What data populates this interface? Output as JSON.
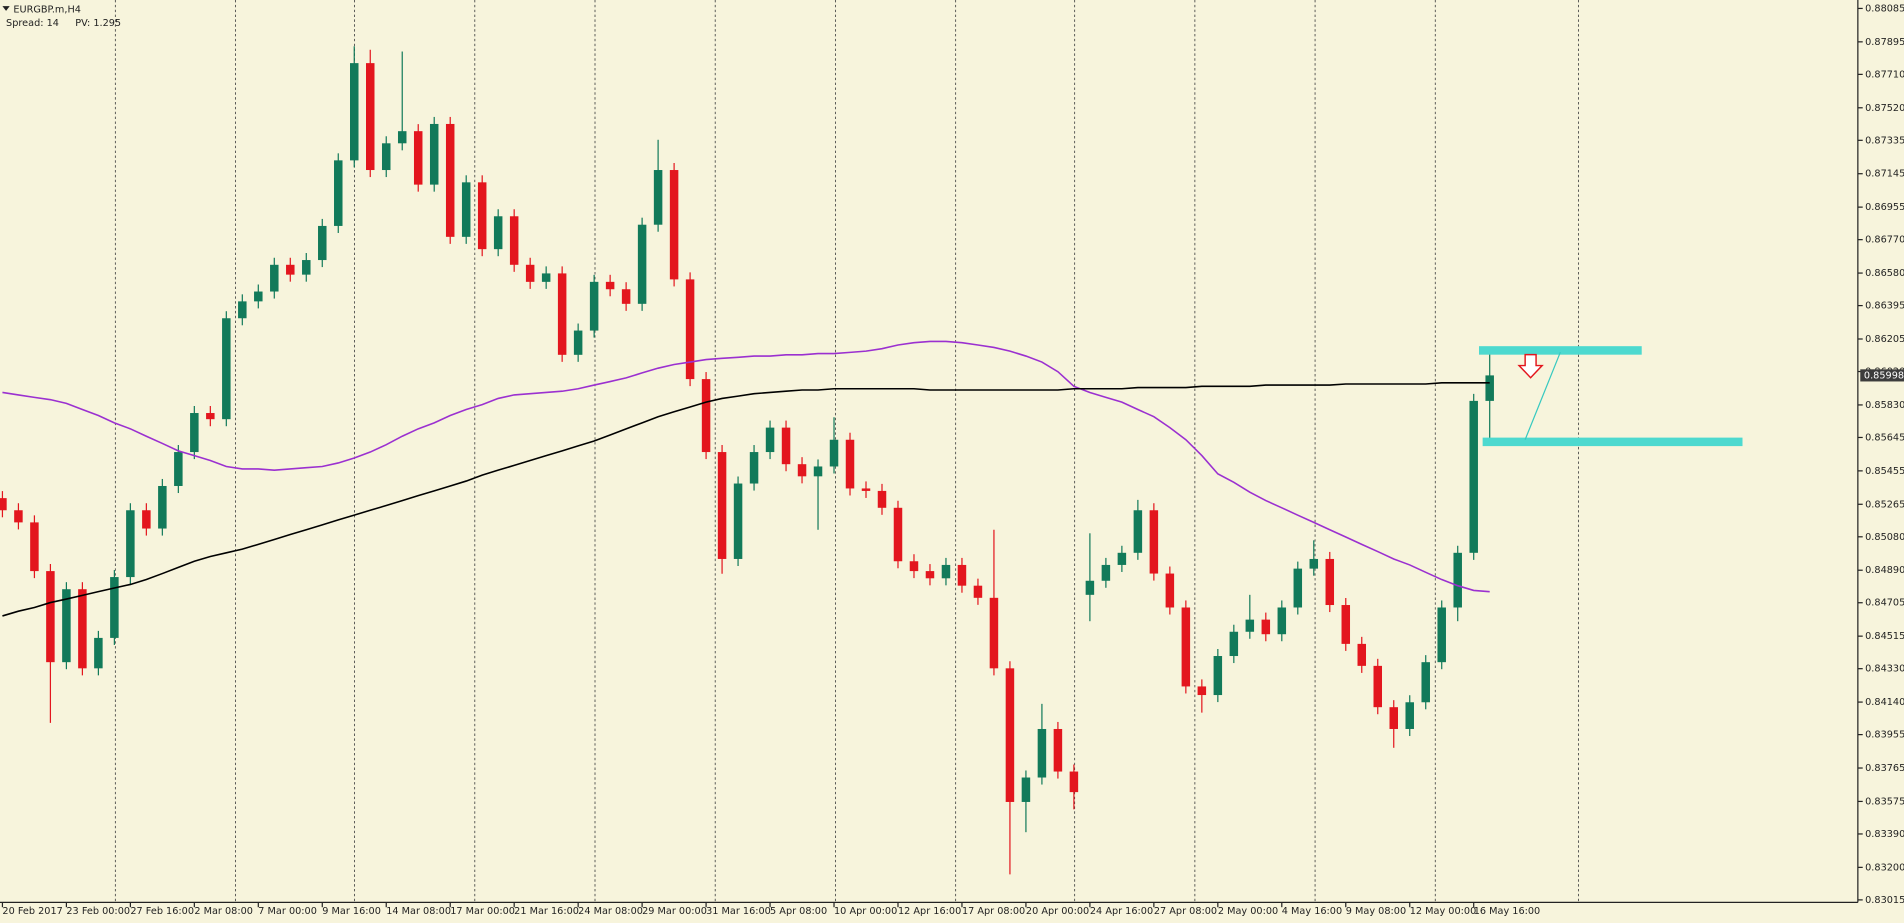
{
  "chart_data": {
    "type": "candlestick",
    "title": "EURGBP.m,H4",
    "spread": "Spread: 14",
    "pv": "PV: 1.295",
    "up_color": "#127a5a",
    "down_color": "#e3161e",
    "background": "#f7f4dc",
    "grid": false,
    "ylim": [
      0.83001,
      0.88133
    ],
    "yticks": [
      {
        "value": 0.88085,
        "label": "0.88085"
      },
      {
        "value": 0.87895,
        "label": "0.87895"
      },
      {
        "value": 0.8771,
        "label": "0.87710"
      },
      {
        "value": 0.8752,
        "label": "0.87520"
      },
      {
        "value": 0.87335,
        "label": "0.87335"
      },
      {
        "value": 0.87145,
        "label": "0.87145"
      },
      {
        "value": 0.86955,
        "label": "0.86955"
      },
      {
        "value": 0.8677,
        "label": "0.86770"
      },
      {
        "value": 0.8658,
        "label": "0.86580"
      },
      {
        "value": 0.86395,
        "label": "0.86395"
      },
      {
        "value": 0.86205,
        "label": "0.86205"
      },
      {
        "value": 0.8602,
        "label": "0.86020"
      },
      {
        "value": 0.8583,
        "label": "0.85830"
      },
      {
        "value": 0.85645,
        "label": "0.85645"
      },
      {
        "value": 0.85455,
        "label": "0.85455"
      },
      {
        "value": 0.85265,
        "label": "0.85265"
      },
      {
        "value": 0.8508,
        "label": "0.85080"
      },
      {
        "value": 0.8489,
        "label": "0.84890"
      },
      {
        "value": 0.84705,
        "label": "0.84705"
      },
      {
        "value": 0.84515,
        "label": "0.84515"
      },
      {
        "value": 0.8433,
        "label": "0.84330"
      },
      {
        "value": 0.8414,
        "label": "0.84140"
      },
      {
        "value": 0.83955,
        "label": "0.83955"
      },
      {
        "value": 0.83765,
        "label": "0.83765"
      },
      {
        "value": 0.83575,
        "label": "0.83575"
      },
      {
        "value": 0.8339,
        "label": "0.83390"
      },
      {
        "value": 0.832,
        "label": "0.83200"
      },
      {
        "value": 0.83015,
        "label": "0.83015"
      }
    ],
    "categories": [
      "20 Feb 2017",
      null,
      null,
      null,
      "23 Feb 00:00",
      null,
      null,
      null,
      "27 Feb 16:00",
      null,
      null,
      null,
      "2 Mar 08:00",
      null,
      null,
      null,
      "7 Mar 00:00",
      null,
      null,
      null,
      "9 Mar 16:00",
      null,
      null,
      null,
      "14 Mar 08:00",
      null,
      null,
      null,
      "17 Mar 00:00",
      null,
      null,
      null,
      "21 Mar 16:00",
      null,
      null,
      null,
      "24 Mar 08:00",
      null,
      null,
      null,
      "29 Mar 00:00",
      null,
      null,
      null,
      "31 Mar 16:00",
      null,
      null,
      null,
      "5 Apr 08:00",
      null,
      null,
      null,
      "10 Apr 00:00",
      null,
      null,
      null,
      "12 Apr 16:00",
      null,
      null,
      null,
      "17 Apr 08:00",
      null,
      null,
      null,
      "20 Apr 00:00",
      null,
      null,
      null,
      "24 Apr 16:00",
      null,
      null,
      null,
      "27 Apr 08:00",
      null,
      null,
      null,
      "2 May 00:00",
      null,
      null,
      null,
      "4 May 16:00",
      null,
      null,
      null,
      "9 May 08:00",
      null,
      null,
      null,
      "12 May 00:00",
      null,
      null,
      null,
      "16 May 16:00",
      null
    ],
    "candles": {
      "open": [
        0.853,
        0.85231,
        0.85162,
        0.84885,
        0.84367,
        0.84782,
        0.84332,
        0.84505,
        0.84851,
        0.85231,
        0.85127,
        0.85369,
        0.85562,
        0.85784,
        0.85749,
        0.86323,
        0.86419,
        0.86475,
        0.86627,
        0.86571,
        0.86654,
        0.86848,
        0.87221,
        0.87774,
        0.87166,
        0.87318,
        0.87387,
        0.87083,
        0.87428,
        0.86786,
        0.87096,
        0.86716,
        0.86903,
        0.86627,
        0.8653,
        0.86578,
        0.86115,
        0.86253,
        0.8653,
        0.86488,
        0.86405,
        0.86855,
        0.87166,
        0.86544,
        0.85977,
        0.85562,
        0.84954,
        0.85383,
        0.85562,
        0.85701,
        0.85493,
        0.85424,
        0.8548,
        0.85632,
        0.85355,
        0.85341,
        0.85245,
        0.84941,
        0.84885,
        0.84844,
        0.8492,
        0.84802,
        0.84733,
        0.84332,
        0.83572,
        0.83711,
        0.83987,
        0.83745,
        0.8475,
        0.8483,
        0.8492,
        0.84989,
        0.85231,
        0.84871,
        0.84678,
        0.84229,
        0.8418,
        0.84402,
        0.8454,
        0.84609,
        0.84526,
        0.84678,
        0.84899,
        0.84954,
        0.84692,
        0.84471,
        0.84346,
        0.84111,
        0.83987,
        0.84139,
        0.84367,
        0.84678,
        0.84989,
        0.85853
      ],
      "high": [
        0.8534,
        0.85271,
        0.85202,
        0.84925,
        0.84822,
        0.84822,
        0.84545,
        0.84891,
        0.85271,
        0.85271,
        0.85409,
        0.85602,
        0.85824,
        0.85824,
        0.86363,
        0.86459,
        0.86515,
        0.86667,
        0.86667,
        0.86694,
        0.86888,
        0.87261,
        0.8787,
        0.8785,
        0.87358,
        0.8784,
        0.87427,
        0.87468,
        0.87468,
        0.87136,
        0.87136,
        0.86943,
        0.86943,
        0.86667,
        0.86618,
        0.86618,
        0.86293,
        0.8657,
        0.8657,
        0.86528,
        0.86895,
        0.87338,
        0.87206,
        0.86584,
        0.86017,
        0.85602,
        0.85423,
        0.85602,
        0.85741,
        0.85741,
        0.85533,
        0.8552,
        0.8576,
        0.85672,
        0.85395,
        0.85381,
        0.85285,
        0.84981,
        0.84925,
        0.8496,
        0.8496,
        0.84842,
        0.8512,
        0.84372,
        0.83751,
        0.8413,
        0.84027,
        0.83785,
        0.851,
        0.8496,
        0.85029,
        0.8529,
        0.85271,
        0.84911,
        0.84718,
        0.84269,
        0.84442,
        0.8458,
        0.8475,
        0.84649,
        0.84718,
        0.84939,
        0.8506,
        0.84994,
        0.84732,
        0.84511,
        0.84386,
        0.84151,
        0.84179,
        0.84407,
        0.84718,
        0.85029,
        0.85893,
        0.8616
      ],
      "low": [
        0.85191,
        0.85122,
        0.84845,
        0.84022,
        0.84327,
        0.84292,
        0.84292,
        0.84465,
        0.84811,
        0.85087,
        0.85087,
        0.85329,
        0.85522,
        0.85709,
        0.85709,
        0.86283,
        0.86379,
        0.86435,
        0.86531,
        0.86531,
        0.86614,
        0.86808,
        0.87181,
        0.87126,
        0.87126,
        0.87278,
        0.87043,
        0.87043,
        0.86746,
        0.86746,
        0.86676,
        0.86676,
        0.86587,
        0.8649,
        0.8649,
        0.86075,
        0.86075,
        0.86213,
        0.86448,
        0.86365,
        0.86365,
        0.86815,
        0.86504,
        0.85937,
        0.85522,
        0.8487,
        0.84914,
        0.85343,
        0.85522,
        0.85453,
        0.85384,
        0.8512,
        0.8544,
        0.85315,
        0.85301,
        0.85205,
        0.84901,
        0.84845,
        0.84804,
        0.84804,
        0.84762,
        0.84693,
        0.84292,
        0.8316,
        0.834,
        0.83671,
        0.83705,
        0.8353,
        0.846,
        0.8479,
        0.8488,
        0.84949,
        0.84831,
        0.84638,
        0.84189,
        0.8408,
        0.8414,
        0.84362,
        0.845,
        0.84486,
        0.84486,
        0.84638,
        0.84859,
        0.84652,
        0.84431,
        0.84306,
        0.84071,
        0.8388,
        0.83947,
        0.84099,
        0.84327,
        0.846,
        0.84949,
        0.8564
      ],
      "close": [
        0.85231,
        0.85162,
        0.84885,
        0.84367,
        0.84782,
        0.84332,
        0.84505,
        0.84851,
        0.85231,
        0.85127,
        0.85369,
        0.85562,
        0.85784,
        0.85749,
        0.86323,
        0.86419,
        0.86475,
        0.86627,
        0.86571,
        0.86654,
        0.86848,
        0.87221,
        0.87774,
        0.87166,
        0.87318,
        0.87387,
        0.87083,
        0.87428,
        0.86786,
        0.87096,
        0.86716,
        0.86903,
        0.86627,
        0.8653,
        0.86578,
        0.86115,
        0.86253,
        0.8653,
        0.86488,
        0.86405,
        0.86855,
        0.87166,
        0.86544,
        0.85977,
        0.85562,
        0.84954,
        0.85383,
        0.85562,
        0.85701,
        0.85493,
        0.85424,
        0.8548,
        0.85632,
        0.85355,
        0.85341,
        0.85245,
        0.84941,
        0.84885,
        0.84844,
        0.8492,
        0.84802,
        0.84733,
        0.84332,
        0.83572,
        0.83711,
        0.83987,
        0.83745,
        0.83628,
        0.8483,
        0.8492,
        0.84989,
        0.85231,
        0.84871,
        0.84678,
        0.84229,
        0.8418,
        0.84402,
        0.8454,
        0.84609,
        0.84526,
        0.84678,
        0.84899,
        0.84954,
        0.84692,
        0.84471,
        0.84346,
        0.84111,
        0.83987,
        0.84139,
        0.84367,
        0.84678,
        0.84989,
        0.85853,
        0.85998
      ]
    },
    "lines": [
      {
        "color": "#9b30d0",
        "values": [
          0.85901,
          0.85887,
          0.85873,
          0.8586,
          0.85839,
          0.85804,
          0.8577,
          0.85728,
          0.85694,
          0.85652,
          0.85611,
          0.85569,
          0.85542,
          0.85514,
          0.8548,
          0.85466,
          0.85466,
          0.85459,
          0.85466,
          0.85473,
          0.8548,
          0.855,
          0.85528,
          0.85562,
          0.85604,
          0.85652,
          0.85694,
          0.85728,
          0.8577,
          0.85804,
          0.85832,
          0.85867,
          0.85887,
          0.85894,
          0.85901,
          0.85908,
          0.85922,
          0.85943,
          0.85963,
          0.85984,
          0.86012,
          0.86039,
          0.8606,
          0.86074,
          0.86088,
          0.86095,
          0.86101,
          0.86108,
          0.86108,
          0.86115,
          0.86115,
          0.86122,
          0.86122,
          0.86129,
          0.86136,
          0.8615,
          0.86171,
          0.86184,
          0.86191,
          0.86191,
          0.86184,
          0.86171,
          0.86157,
          0.86136,
          0.86108,
          0.86074,
          0.86019,
          0.85936,
          0.85901,
          0.85873,
          0.85846,
          0.85804,
          0.85763,
          0.85701,
          0.85632,
          0.85542,
          0.85438,
          0.8539,
          0.85334,
          0.85286,
          0.85245,
          0.85203,
          0.85162,
          0.8512,
          0.85079,
          0.85037,
          0.84996,
          0.84954,
          0.8492,
          0.84878,
          0.84837,
          0.84802,
          0.84775,
          0.84768
        ]
      },
      {
        "color": "#000000",
        "values": [
          0.8463,
          0.84657,
          0.84678,
          0.84706,
          0.84726,
          0.84747,
          0.84768,
          0.84789,
          0.84809,
          0.84837,
          0.84871,
          0.84906,
          0.84941,
          0.84968,
          0.84989,
          0.8501,
          0.85037,
          0.85065,
          0.85093,
          0.8512,
          0.85148,
          0.85176,
          0.85203,
          0.85231,
          0.85258,
          0.85286,
          0.85314,
          0.85341,
          0.85369,
          0.85397,
          0.85431,
          0.85459,
          0.85486,
          0.85514,
          0.85542,
          0.85569,
          0.85597,
          0.85625,
          0.85659,
          0.85694,
          0.85728,
          0.85763,
          0.85791,
          0.85818,
          0.85846,
          0.85867,
          0.8588,
          0.85894,
          0.85901,
          0.85908,
          0.85915,
          0.85915,
          0.85922,
          0.85922,
          0.85922,
          0.85922,
          0.85922,
          0.85922,
          0.85915,
          0.85915,
          0.85915,
          0.85915,
          0.85915,
          0.85915,
          0.85915,
          0.85915,
          0.85915,
          0.85922,
          0.85922,
          0.85922,
          0.85922,
          0.85929,
          0.85929,
          0.85929,
          0.85929,
          0.85936,
          0.85936,
          0.85936,
          0.85936,
          0.85943,
          0.85943,
          0.85943,
          0.85943,
          0.85943,
          0.85949,
          0.85949,
          0.85949,
          0.85949,
          0.85949,
          0.85949,
          0.85956,
          0.85956,
          0.85956,
          0.85956
        ]
      }
    ],
    "levels": [
      0.8614,
      0.8562
    ],
    "level_color": "#4dd9cf",
    "current_price": 0.85998
  }
}
